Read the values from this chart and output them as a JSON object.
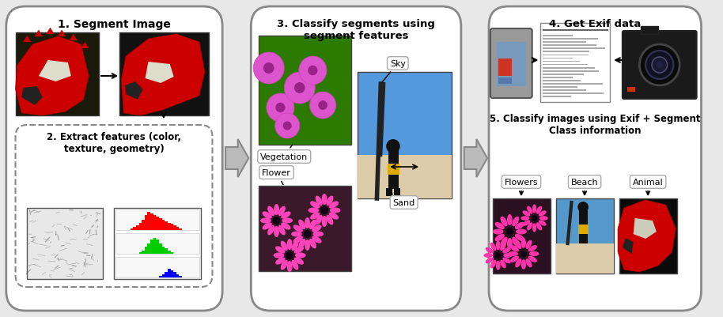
{
  "bg_color": "#e8e8e8",
  "box_color": "#ffffff",
  "box_edge": "#888888",
  "arrow_color": "#888888",
  "text_color": "#000000",
  "box1_title": "1. Segment Image",
  "box2_title": "2. Extract features (color,\ntexture, geometry)",
  "box3_title": "3. Classify segments using\nsegment features",
  "box4_title": "4. Get Exif data",
  "box5_title": "5. Classify images using Exif + Segment\nClass information",
  "label_vegetation": "Vegetation",
  "label_flower": "Flower",
  "label_sky": "Sky",
  "label_sand": "Sand",
  "label_flowers": "Flowers",
  "label_beach": "Beach",
  "label_animal": "Animal"
}
